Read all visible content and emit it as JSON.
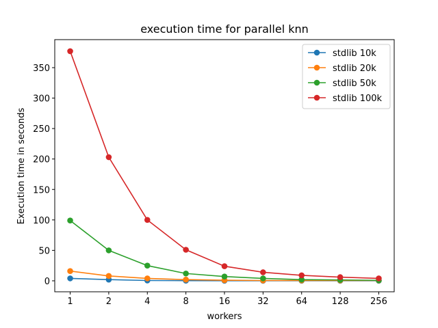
{
  "chart_data": {
    "type": "line",
    "title": "execution time for parallel knn",
    "xlabel": "workers",
    "ylabel": "Execution time in seconds",
    "categories": [
      "1",
      "2",
      "4",
      "8",
      "16",
      "32",
      "64",
      "128",
      "256"
    ],
    "ylim": [
      -18,
      396
    ],
    "yticks": [
      0,
      50,
      100,
      150,
      200,
      250,
      300,
      350
    ],
    "grid": false,
    "legend": "top-right",
    "series": [
      {
        "name": "stdlib 10k",
        "color": "#1f77b4",
        "values": [
          4,
          2,
          0.5,
          0.3,
          0.2,
          0.2,
          0.2,
          0.2,
          0.2
        ]
      },
      {
        "name": "stdlib 20k",
        "color": "#ff7f0e",
        "values": [
          16,
          8,
          4,
          2,
          1,
          0.5,
          0.5,
          0.5,
          0.5
        ]
      },
      {
        "name": "stdlib 50k",
        "color": "#2ca02c",
        "values": [
          99,
          50,
          25,
          12,
          7,
          4,
          2,
          1.5,
          0.8
        ]
      },
      {
        "name": "stdlib 100k",
        "color": "#d62728",
        "values": [
          377,
          203,
          100,
          51,
          24,
          14,
          9,
          6,
          4
        ]
      }
    ]
  }
}
